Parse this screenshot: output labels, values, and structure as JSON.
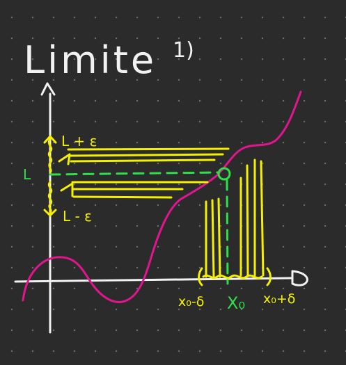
{
  "title": "Limite",
  "number": "1)",
  "labels": {
    "upper": "L + ε",
    "limit": "L",
    "lower": "L - ε",
    "x_minus": "x₀-δ",
    "x_zero": "X₀",
    "x_plus": "x₀+δ"
  },
  "colors": {
    "background": "#2b2b2b",
    "axes": "#f2f2f2",
    "curve": "#e0168f",
    "epsilon_delta": "#f4f000",
    "limit_point": "#2fe04a"
  }
}
